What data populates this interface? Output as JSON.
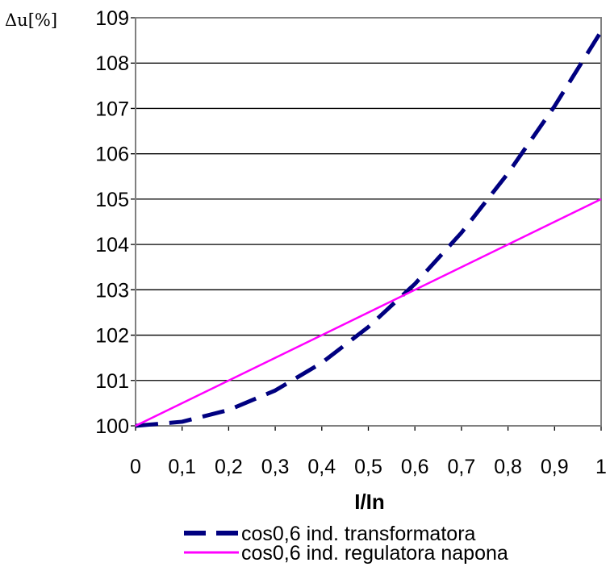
{
  "chart_data": {
    "type": "line",
    "title": "",
    "xlabel": "I/In",
    "ylabel": "Δu[%]",
    "xlim": [
      0,
      1
    ],
    "ylim": [
      100,
      109
    ],
    "grid": "horizontal",
    "x_ticks": [
      "0",
      "0,1",
      "0,2",
      "0,3",
      "0,4",
      "0,5",
      "0,6",
      "0,7",
      "0,8",
      "0,9",
      "1"
    ],
    "y_ticks": [
      "100",
      "101",
      "102",
      "103",
      "104",
      "105",
      "106",
      "107",
      "108",
      "109"
    ],
    "legend_position": "bottom",
    "series": [
      {
        "name": "cos0,6 ind. transformatora",
        "color": "#000080",
        "style": "dashed",
        "x": [
          0,
          0.1,
          0.2,
          0.3,
          0.4,
          0.5,
          0.6,
          0.7,
          0.8,
          0.9,
          1.0
        ],
        "y": [
          100.0,
          100.09,
          100.35,
          100.78,
          101.39,
          102.18,
          103.13,
          104.26,
          105.57,
          107.05,
          108.7
        ]
      },
      {
        "name": "cos0,6 ind. regulatora napona",
        "color": "#ff00ff",
        "style": "solid",
        "x": [
          0,
          1
        ],
        "y": [
          100,
          105
        ]
      }
    ]
  }
}
